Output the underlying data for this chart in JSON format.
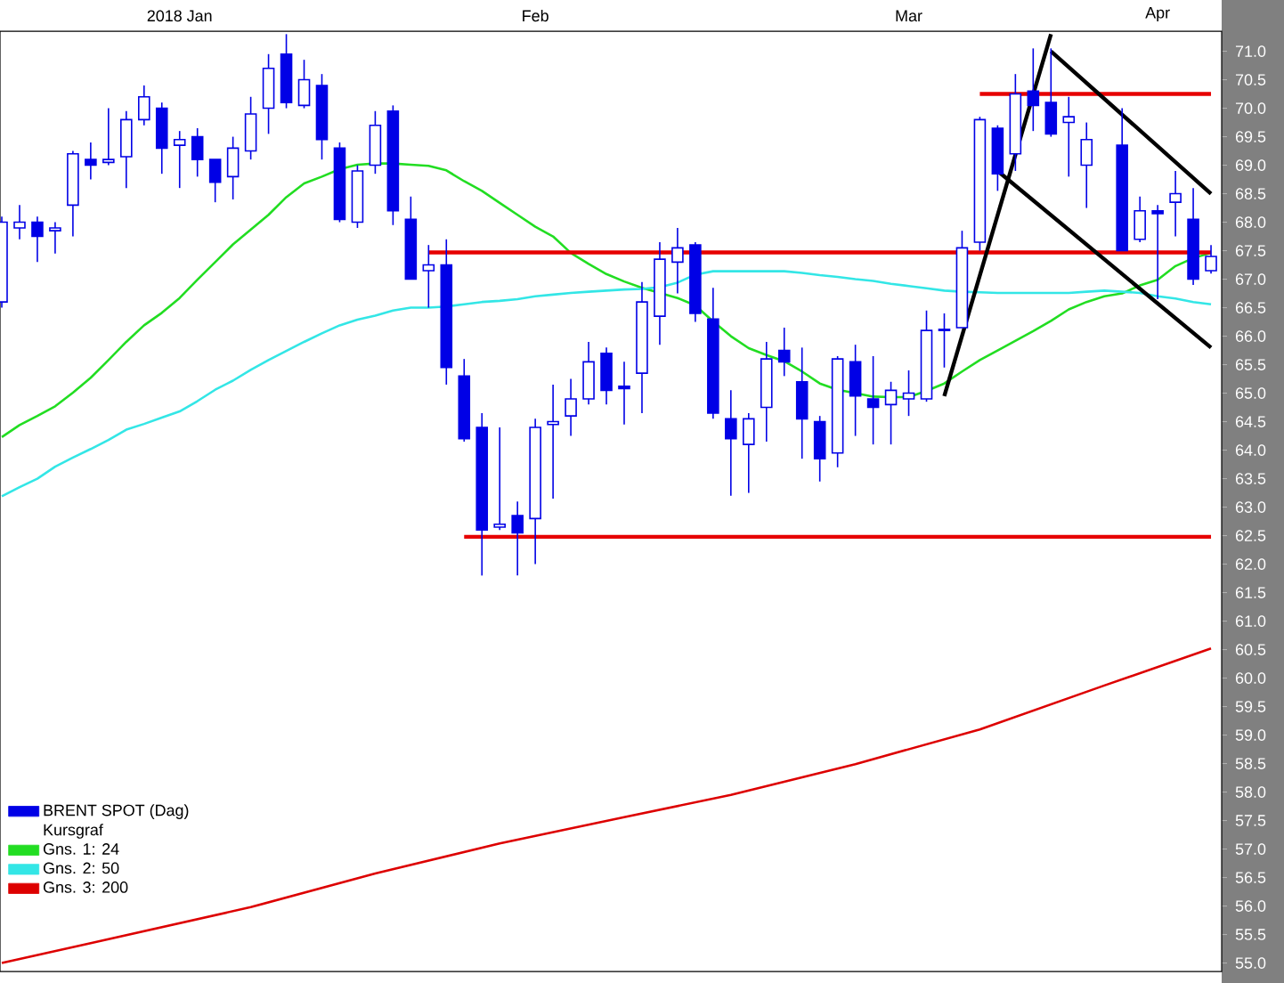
{
  "chart_data": {
    "type": "candlestick",
    "categories": [
      null,
      null,
      null,
      null,
      null,
      null,
      null,
      null,
      null,
      null,
      "2018 Jan",
      null,
      null,
      null,
      null,
      null,
      null,
      null,
      null,
      null,
      null,
      null,
      null,
      null,
      null,
      null,
      null,
      null,
      null,
      null,
      "Feb",
      null,
      null,
      null,
      null,
      null,
      null,
      null,
      null,
      null,
      null,
      null,
      null,
      null,
      null,
      null,
      null,
      null,
      null,
      null,
      null,
      "Mar",
      null,
      null,
      null,
      null,
      null,
      null,
      null,
      null,
      null,
      null,
      null,
      null,
      null,
      "Apr",
      null,
      null,
      null
    ],
    "series": [
      {
        "name": "BRENT SPOT (Dag)",
        "color": "#0000e6",
        "ohlc": [
          [
            66.6,
            68.1,
            66.5,
            68.0
          ],
          [
            67.9,
            68.3,
            67.7,
            68.0
          ],
          [
            68.0,
            68.1,
            67.3,
            67.75
          ],
          [
            67.85,
            68.0,
            67.45,
            67.9
          ],
          [
            68.3,
            69.25,
            67.75,
            69.2
          ],
          [
            69.1,
            69.4,
            68.75,
            69.0
          ],
          [
            69.05,
            70.0,
            69.0,
            69.1
          ],
          [
            69.15,
            69.95,
            68.6,
            69.8
          ],
          [
            69.8,
            70.4,
            69.7,
            70.2
          ],
          [
            70.0,
            70.1,
            68.85,
            69.3
          ],
          [
            69.35,
            69.6,
            68.6,
            69.45
          ],
          [
            69.5,
            69.65,
            68.8,
            69.1
          ],
          [
            69.1,
            69.1,
            68.35,
            68.7
          ],
          [
            68.8,
            69.5,
            68.4,
            69.3
          ],
          [
            69.25,
            70.2,
            69.1,
            69.9
          ],
          [
            70.0,
            70.95,
            69.55,
            70.7
          ],
          [
            70.95,
            71.3,
            70.0,
            70.1
          ],
          [
            70.05,
            70.85,
            70.0,
            70.5
          ],
          [
            70.4,
            70.6,
            69.1,
            69.45
          ],
          [
            69.3,
            69.4,
            68.0,
            68.05
          ],
          [
            68.0,
            69.0,
            67.9,
            68.9
          ],
          [
            69.0,
            69.95,
            68.85,
            69.7
          ],
          [
            69.95,
            70.05,
            67.95,
            68.2
          ],
          [
            68.05,
            68.45,
            67.0,
            67.0
          ],
          [
            67.15,
            67.6,
            66.5,
            67.25
          ],
          [
            67.25,
            67.7,
            65.15,
            65.45
          ],
          [
            65.3,
            65.6,
            64.15,
            64.2
          ],
          [
            64.4,
            64.65,
            61.8,
            62.6
          ],
          [
            62.65,
            64.4,
            62.6,
            62.7
          ],
          [
            62.85,
            63.1,
            61.8,
            62.55
          ],
          [
            62.8,
            64.55,
            62.0,
            64.4
          ],
          [
            64.45,
            65.15,
            63.15,
            64.5
          ],
          [
            64.6,
            65.25,
            64.25,
            64.9
          ],
          [
            64.9,
            65.9,
            64.8,
            65.55
          ],
          [
            65.7,
            65.8,
            64.8,
            65.05
          ],
          [
            65.12,
            65.55,
            64.45,
            65.08
          ],
          [
            65.35,
            66.95,
            64.65,
            66.6
          ],
          [
            66.35,
            67.65,
            65.85,
            67.35
          ],
          [
            67.3,
            67.9,
            66.75,
            67.55
          ],
          [
            67.6,
            67.65,
            66.25,
            66.4
          ],
          [
            66.3,
            66.85,
            64.55,
            64.65
          ],
          [
            64.55,
            65.05,
            63.2,
            64.2
          ],
          [
            64.1,
            64.65,
            63.25,
            64.55
          ],
          [
            64.75,
            65.9,
            64.15,
            65.6
          ],
          [
            65.75,
            66.15,
            65.3,
            65.55
          ],
          [
            65.2,
            65.8,
            63.85,
            64.55
          ],
          [
            64.5,
            64.6,
            63.45,
            63.85
          ],
          [
            63.95,
            65.65,
            63.7,
            65.6
          ],
          [
            65.55,
            65.85,
            64.25,
            64.95
          ],
          [
            64.9,
            65.65,
            64.1,
            64.75
          ],
          [
            64.8,
            65.2,
            64.1,
            65.05
          ],
          [
            64.9,
            65.4,
            64.6,
            65.0
          ],
          [
            64.9,
            66.45,
            64.85,
            66.1
          ],
          [
            66.1,
            66.4,
            65.45,
            66.12
          ],
          [
            66.15,
            67.85,
            66.15,
            67.55
          ],
          [
            67.65,
            69.85,
            67.5,
            69.8
          ],
          [
            69.65,
            69.7,
            68.55,
            68.85
          ],
          [
            69.2,
            70.6,
            68.9,
            70.25
          ],
          [
            70.3,
            71.05,
            69.6,
            70.05
          ],
          [
            70.1,
            71.05,
            69.5,
            69.55
          ],
          [
            69.75,
            70.2,
            68.8,
            69.85
          ],
          [
            69.0,
            69.75,
            68.25,
            69.45
          ],
          null,
          [
            69.35,
            70.0,
            67.5,
            67.5
          ],
          [
            67.7,
            68.45,
            67.65,
            68.2
          ],
          [
            68.2,
            68.3,
            66.65,
            68.15
          ],
          [
            68.35,
            68.9,
            67.75,
            68.5
          ],
          [
            68.05,
            68.6,
            66.9,
            67.0
          ],
          [
            67.15,
            67.6,
            67.1,
            67.4
          ]
        ]
      },
      {
        "name": "Gns. 1: 24",
        "type": "line",
        "color": "#22dd22",
        "values": [
          64.23,
          64.44,
          64.6,
          64.77,
          65.01,
          65.27,
          65.58,
          65.9,
          66.19,
          66.41,
          66.67,
          66.99,
          67.3,
          67.61,
          67.87,
          68.13,
          68.44,
          68.68,
          68.8,
          68.93,
          69.01,
          69.03,
          69.03,
          69.01,
          68.99,
          68.91,
          68.72,
          68.55,
          68.34,
          68.13,
          67.92,
          67.75,
          67.46,
          67.27,
          67.09,
          66.96,
          66.85,
          66.76,
          66.67,
          66.54,
          66.26,
          66.0,
          65.79,
          65.67,
          65.56,
          65.38,
          65.17,
          65.06,
          65.0,
          64.94,
          64.93,
          64.93,
          65.04,
          65.17,
          65.38,
          65.58,
          65.75,
          65.92,
          66.09,
          66.27,
          66.47,
          66.6,
          66.7,
          66.75,
          66.89,
          66.99,
          67.23,
          67.37,
          67.46
        ]
      },
      {
        "name": "Gns. 2: 50",
        "type": "line",
        "color": "#33e6e6",
        "values": [
          63.19,
          63.35,
          63.5,
          63.71,
          63.87,
          64.02,
          64.18,
          64.36,
          64.46,
          64.57,
          64.68,
          64.86,
          65.06,
          65.22,
          65.41,
          65.58,
          65.74,
          65.9,
          66.05,
          66.19,
          66.29,
          66.36,
          66.45,
          66.5,
          66.5,
          66.52,
          66.56,
          66.6,
          66.62,
          66.65,
          66.7,
          66.73,
          66.76,
          66.78,
          66.8,
          66.82,
          66.83,
          66.86,
          66.94,
          67.08,
          67.14,
          67.14,
          67.14,
          67.14,
          67.14,
          67.11,
          67.07,
          67.04,
          67.0,
          66.97,
          66.92,
          66.88,
          66.84,
          66.8,
          66.78,
          66.77,
          66.76,
          66.76,
          66.76,
          66.76,
          66.76,
          66.78,
          66.8,
          66.78,
          66.76,
          66.7,
          66.66,
          66.6,
          66.56
        ]
      },
      {
        "name": "Gns. 3: 200",
        "type": "line",
        "color": "#dd0000",
        "values": [
          55.0,
          null,
          null,
          null,
          null,
          55.35,
          null,
          null,
          null,
          null,
          null,
          null,
          null,
          null,
          55.98,
          null,
          null,
          null,
          null,
          null,
          null,
          56.57,
          null,
          null,
          null,
          null,
          null,
          null,
          57.1,
          null,
          null,
          null,
          null,
          null,
          null,
          57.56,
          null,
          null,
          null,
          null,
          null,
          57.95,
          null,
          null,
          null,
          null,
          null,
          null,
          58.49,
          null,
          null,
          null,
          null,
          null,
          null,
          59.1,
          null,
          null,
          null,
          null,
          null,
          null,
          59.87,
          null,
          null,
          null,
          null,
          null,
          60.52
        ]
      },
      {
        "type": "line",
        "color": "#e60000",
        "values": [
          null,
          null,
          null,
          null,
          null,
          null,
          null,
          null,
          null,
          null,
          null,
          null,
          null,
          null,
          null,
          null,
          null,
          null,
          null,
          null,
          null,
          null,
          null,
          null,
          null,
          null,
          null,
          null,
          null,
          null,
          null,
          null,
          null,
          null,
          null,
          null,
          null,
          null,
          null,
          null,
          null,
          null,
          null,
          null,
          null,
          null,
          null,
          null,
          null,
          null,
          null,
          null,
          null,
          null,
          null,
          70.25,
          null,
          null,
          null,
          null,
          null,
          null,
          null,
          null,
          null,
          null,
          null,
          null,
          70.25
        ]
      },
      {
        "type": "line",
        "color": "#e60000",
        "values": [
          null,
          null,
          null,
          null,
          null,
          null,
          null,
          null,
          null,
          null,
          null,
          null,
          null,
          null,
          null,
          null,
          null,
          null,
          null,
          null,
          null,
          null,
          null,
          null,
          67.47,
          null,
          null,
          null,
          null,
          null,
          null,
          null,
          null,
          null,
          null,
          null,
          null,
          null,
          null,
          null,
          null,
          null,
          null,
          null,
          null,
          null,
          null,
          null,
          null,
          null,
          null,
          null,
          null,
          null,
          null,
          null,
          null,
          null,
          null,
          null,
          null,
          null,
          null,
          null,
          null,
          null,
          null,
          null,
          67.47
        ]
      },
      {
        "type": "line",
        "color": "#e60000",
        "values": [
          null,
          null,
          null,
          null,
          null,
          null,
          null,
          null,
          null,
          null,
          null,
          null,
          null,
          null,
          null,
          null,
          null,
          null,
          null,
          null,
          null,
          null,
          null,
          null,
          null,
          null,
          62.48,
          null,
          null,
          null,
          null,
          null,
          null,
          null,
          null,
          null,
          null,
          null,
          null,
          null,
          null,
          null,
          null,
          null,
          null,
          null,
          null,
          null,
          null,
          null,
          null,
          null,
          null,
          null,
          null,
          null,
          null,
          null,
          null,
          null,
          null,
          null,
          null,
          null,
          null,
          null,
          null,
          null,
          62.48
        ]
      },
      {
        "type": "line",
        "color": "#000000",
        "values": [
          null,
          null,
          null,
          null,
          null,
          null,
          null,
          null,
          null,
          null,
          null,
          null,
          null,
          null,
          null,
          null,
          null,
          null,
          null,
          null,
          null,
          null,
          null,
          null,
          null,
          null,
          null,
          null,
          null,
          null,
          null,
          null,
          null,
          null,
          null,
          null,
          null,
          null,
          null,
          null,
          null,
          null,
          null,
          null,
          null,
          null,
          null,
          null,
          null,
          null,
          null,
          null,
          null,
          64.95,
          null,
          null,
          null,
          null,
          null,
          71.3,
          null,
          null,
          null,
          null,
          null,
          null,
          null,
          null,
          null
        ]
      },
      {
        "type": "line",
        "color": "#000000",
        "values": [
          null,
          null,
          null,
          null,
          null,
          null,
          null,
          null,
          null,
          null,
          null,
          null,
          null,
          null,
          null,
          null,
          null,
          null,
          null,
          null,
          null,
          null,
          null,
          null,
          null,
          null,
          null,
          null,
          null,
          null,
          null,
          null,
          null,
          null,
          null,
          null,
          null,
          null,
          null,
          null,
          null,
          null,
          null,
          null,
          null,
          null,
          null,
          null,
          null,
          null,
          null,
          null,
          null,
          null,
          null,
          null,
          null,
          null,
          null,
          71.0,
          null,
          null,
          null,
          null,
          null,
          null,
          null,
          null,
          68.5
        ]
      },
      {
        "type": "line",
        "color": "#000000",
        "values": [
          null,
          null,
          null,
          null,
          null,
          null,
          null,
          null,
          null,
          null,
          null,
          null,
          null,
          null,
          null,
          null,
          null,
          null,
          null,
          null,
          null,
          null,
          null,
          null,
          null,
          null,
          null,
          null,
          null,
          null,
          null,
          null,
          null,
          null,
          null,
          null,
          null,
          null,
          null,
          null,
          null,
          null,
          null,
          null,
          null,
          null,
          null,
          null,
          null,
          null,
          null,
          null,
          null,
          null,
          null,
          null,
          68.9,
          null,
          null,
          null,
          null,
          null,
          null,
          null,
          null,
          null,
          null,
          null,
          65.8
        ]
      }
    ],
    "legend_title": "Kursgraf",
    "legend": "bottom left",
    "ylim": [
      54.85,
      71.35
    ],
    "yticks": [
      {
        "value": 55.0,
        "label": "55.0"
      },
      {
        "value": 55.5,
        "label": "55.5"
      },
      {
        "value": 56.0,
        "label": "56.0"
      },
      {
        "value": 56.5,
        "label": "56.5"
      },
      {
        "value": 57.0,
        "label": "57.0"
      },
      {
        "value": 57.5,
        "label": "57.5"
      },
      {
        "value": 58.0,
        "label": "58.0"
      },
      {
        "value": 58.5,
        "label": "58.5"
      },
      {
        "value": 59.0,
        "label": "59.0"
      },
      {
        "value": 59.5,
        "label": "59.5"
      },
      {
        "value": 60.0,
        "label": "60.0"
      },
      {
        "value": 60.5,
        "label": "60.5"
      },
      {
        "value": 61.0,
        "label": "61.0"
      },
      {
        "value": 61.5,
        "label": "61.5"
      },
      {
        "value": 62.0,
        "label": "62.0"
      },
      {
        "value": 62.5,
        "label": "62.5"
      },
      {
        "value": 63.0,
        "label": "63.0"
      },
      {
        "value": 63.5,
        "label": "63.5"
      },
      {
        "value": 64.0,
        "label": "64.0"
      },
      {
        "value": 64.5,
        "label": "64.5"
      },
      {
        "value": 65.0,
        "label": "65.0"
      },
      {
        "value": 65.5,
        "label": "65.5"
      },
      {
        "value": 66.0,
        "label": "66.0"
      },
      {
        "value": 66.5,
        "label": "66.5"
      },
      {
        "value": 67.0,
        "label": "67.0"
      },
      {
        "value": 67.5,
        "label": "67.5"
      },
      {
        "value": 68.0,
        "label": "68.0"
      },
      {
        "value": 68.5,
        "label": "68.5"
      },
      {
        "value": 69.0,
        "label": "69.0"
      },
      {
        "value": 69.5,
        "label": "69.5"
      },
      {
        "value": 70.0,
        "label": "70.0"
      },
      {
        "value": 70.5,
        "label": "70.5"
      },
      {
        "value": 71.0,
        "label": "71.0"
      }
    ],
    "grid": false
  }
}
